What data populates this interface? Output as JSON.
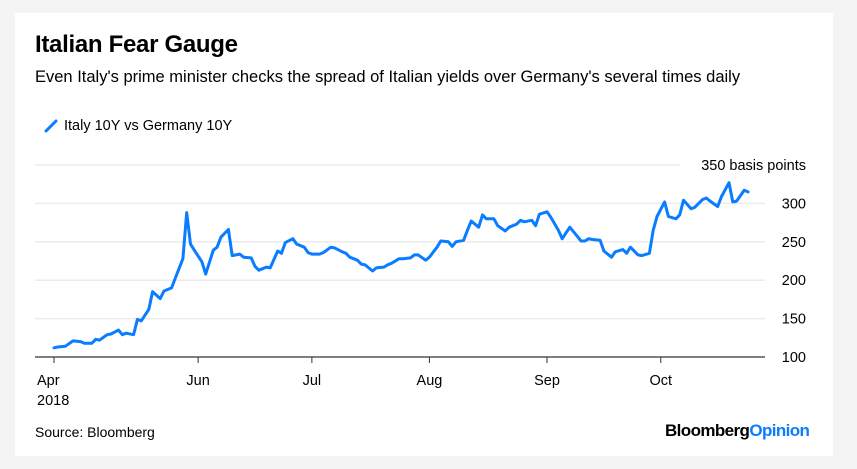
{
  "title": "Italian Fear Gauge",
  "subtitle": "Even Italy's prime minister checks the spread of Italian yields over Germany's several times daily",
  "source": "Source: Bloomberg",
  "logo": {
    "part1": "Bloomberg",
    "part2": "Opinion",
    "accent": "#0a7cff"
  },
  "colors": {
    "series": "#0a7cff",
    "grid": "#ebebeb",
    "axis": "#333333"
  },
  "chart_data": {
    "type": "line",
    "title": "Italian Fear Gauge",
    "subtitle": "Even Italy's prime minister checks the spread of Italian yields over Germany's several times daily",
    "ylabel": "",
    "yunit_label": "350 basis points",
    "ylim": [
      100,
      350
    ],
    "yticks": [
      100,
      150,
      200,
      250,
      300,
      350
    ],
    "y_axis_side": "right",
    "grid": true,
    "legend": "top-left",
    "xlim": [
      "2018-04-24",
      "2018-10-24"
    ],
    "xticks": [
      {
        "date": "2018-04-24",
        "label": "Apr",
        "sublabel": "2018"
      },
      {
        "date": "2018-06-01",
        "label": "Jun"
      },
      {
        "date": "2018-07-01",
        "label": "Jul"
      },
      {
        "date": "2018-08-01",
        "label": "Aug"
      },
      {
        "date": "2018-09-01",
        "label": "Sep"
      },
      {
        "date": "2018-10-01",
        "label": "Oct"
      }
    ],
    "series": [
      {
        "name": "Italy 10Y vs Germany 10Y",
        "color": "#0a7cff",
        "points": [
          [
            "2018-04-24",
            112
          ],
          [
            "2018-04-25",
            113
          ],
          [
            "2018-04-27",
            114
          ],
          [
            "2018-04-29",
            121
          ],
          [
            "2018-05-01",
            120
          ],
          [
            "2018-05-02",
            118
          ],
          [
            "2018-05-04",
            118
          ],
          [
            "2018-05-05",
            123
          ],
          [
            "2018-05-06",
            122
          ],
          [
            "2018-05-08",
            129
          ],
          [
            "2018-05-09",
            130
          ],
          [
            "2018-05-11",
            135
          ],
          [
            "2018-05-12",
            129
          ],
          [
            "2018-05-13",
            131
          ],
          [
            "2018-05-15",
            129
          ],
          [
            "2018-05-16",
            149
          ],
          [
            "2018-05-17",
            147
          ],
          [
            "2018-05-19",
            162
          ],
          [
            "2018-05-20",
            185
          ],
          [
            "2018-05-22",
            176
          ],
          [
            "2018-05-23",
            186
          ],
          [
            "2018-05-25",
            190
          ],
          [
            "2018-05-26",
            203
          ],
          [
            "2018-05-28",
            228
          ],
          [
            "2018-05-29",
            288
          ],
          [
            "2018-05-30",
            247
          ],
          [
            "2018-05-31",
            239
          ],
          [
            "2018-06-02",
            224
          ],
          [
            "2018-06-03",
            208
          ],
          [
            "2018-06-05",
            239
          ],
          [
            "2018-06-06",
            243
          ],
          [
            "2018-06-07",
            256
          ],
          [
            "2018-06-09",
            266
          ],
          [
            "2018-06-10",
            232
          ],
          [
            "2018-06-12",
            234
          ],
          [
            "2018-06-13",
            230
          ],
          [
            "2018-06-15",
            229
          ],
          [
            "2018-06-16",
            218
          ],
          [
            "2018-06-17",
            213
          ],
          [
            "2018-06-19",
            217
          ],
          [
            "2018-06-20",
            216
          ],
          [
            "2018-06-22",
            238
          ],
          [
            "2018-06-23",
            235
          ],
          [
            "2018-06-24",
            249
          ],
          [
            "2018-06-26",
            254
          ],
          [
            "2018-06-27",
            247
          ],
          [
            "2018-06-29",
            243
          ],
          [
            "2018-06-30",
            236
          ],
          [
            "2018-07-01",
            234
          ],
          [
            "2018-07-03",
            234
          ],
          [
            "2018-07-04",
            236
          ],
          [
            "2018-07-06",
            243
          ],
          [
            "2018-07-07",
            242
          ],
          [
            "2018-07-09",
            237
          ],
          [
            "2018-07-10",
            235
          ],
          [
            "2018-07-11",
            230
          ],
          [
            "2018-07-13",
            226
          ],
          [
            "2018-07-14",
            221
          ],
          [
            "2018-07-15",
            220
          ],
          [
            "2018-07-17",
            212
          ],
          [
            "2018-07-18",
            216
          ],
          [
            "2018-07-20",
            217
          ],
          [
            "2018-07-21",
            220
          ],
          [
            "2018-07-22",
            222
          ],
          [
            "2018-07-24",
            228
          ],
          [
            "2018-07-25",
            228
          ],
          [
            "2018-07-27",
            229
          ],
          [
            "2018-07-28",
            233
          ],
          [
            "2018-07-29",
            233
          ],
          [
            "2018-07-31",
            226
          ],
          [
            "2018-08-01",
            230
          ],
          [
            "2018-08-03",
            243
          ],
          [
            "2018-08-04",
            251
          ],
          [
            "2018-08-06",
            250
          ],
          [
            "2018-08-07",
            244
          ],
          [
            "2018-08-08",
            250
          ],
          [
            "2018-08-10",
            252
          ],
          [
            "2018-08-11",
            265
          ],
          [
            "2018-08-12",
            277
          ],
          [
            "2018-08-14",
            269
          ],
          [
            "2018-08-15",
            285
          ],
          [
            "2018-08-16",
            280
          ],
          [
            "2018-08-18",
            280
          ],
          [
            "2018-08-19",
            271
          ],
          [
            "2018-08-21",
            264
          ],
          [
            "2018-08-22",
            269
          ],
          [
            "2018-08-24",
            273
          ],
          [
            "2018-08-25",
            278
          ],
          [
            "2018-08-26",
            276
          ],
          [
            "2018-08-28",
            278
          ],
          [
            "2018-08-29",
            271
          ],
          [
            "2018-08-30",
            286
          ],
          [
            "2018-09-01",
            289
          ],
          [
            "2018-09-02",
            282
          ],
          [
            "2018-09-04",
            265
          ],
          [
            "2018-09-05",
            254
          ],
          [
            "2018-09-07",
            269
          ],
          [
            "2018-09-08",
            263
          ],
          [
            "2018-09-10",
            251
          ],
          [
            "2018-09-11",
            251
          ],
          [
            "2018-09-12",
            254
          ],
          [
            "2018-09-13",
            253
          ],
          [
            "2018-09-15",
            252
          ],
          [
            "2018-09-16",
            238
          ],
          [
            "2018-09-18",
            230
          ],
          [
            "2018-09-19",
            237
          ],
          [
            "2018-09-21",
            240
          ],
          [
            "2018-09-22",
            235
          ],
          [
            "2018-09-23",
            243
          ],
          [
            "2018-09-25",
            233
          ],
          [
            "2018-09-26",
            232
          ],
          [
            "2018-09-28",
            235
          ],
          [
            "2018-09-29",
            265
          ],
          [
            "2018-09-30",
            283
          ],
          [
            "2018-10-02",
            302
          ],
          [
            "2018-10-03",
            283
          ],
          [
            "2018-10-05",
            280
          ],
          [
            "2018-10-06",
            285
          ],
          [
            "2018-10-07",
            304
          ],
          [
            "2018-10-09",
            293
          ],
          [
            "2018-10-10",
            295
          ],
          [
            "2018-10-12",
            305
          ],
          [
            "2018-10-13",
            307
          ],
          [
            "2018-10-14",
            303
          ],
          [
            "2018-10-16",
            296
          ],
          [
            "2018-10-17",
            309
          ],
          [
            "2018-10-19",
            327
          ],
          [
            "2018-10-20",
            302
          ],
          [
            "2018-10-21",
            303
          ],
          [
            "2018-10-23",
            317
          ],
          [
            "2018-10-24",
            315
          ]
        ]
      }
    ]
  }
}
